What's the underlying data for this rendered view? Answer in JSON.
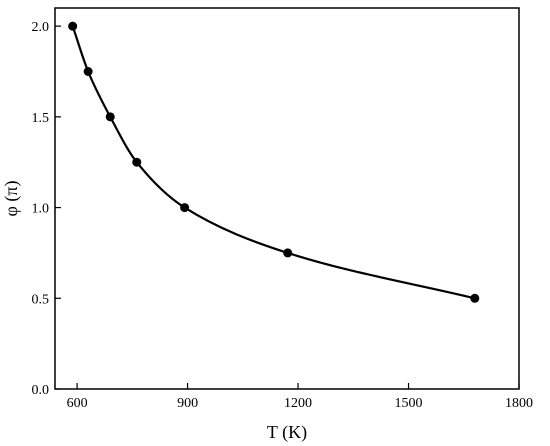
{
  "chart_data": {
    "type": "line",
    "xlabel": "T (K)",
    "ylabel": "φ (π)",
    "xlim": [
      540,
      1800
    ],
    "ylim": [
      0.0,
      2.1
    ],
    "xticks": [
      600,
      900,
      1200,
      1500,
      1800
    ],
    "yticks": [
      0.0,
      0.5,
      1.0,
      1.5,
      2.0
    ],
    "xtick_labels": [
      "600",
      "900",
      "1200",
      "1500",
      "1800"
    ],
    "ytick_labels": [
      "0.0",
      "0.5",
      "1.0",
      "1.5",
      "2.0"
    ],
    "grid": false,
    "series": [
      {
        "x": [
          588,
          630,
          690,
          762,
          892,
          1172,
          1680
        ],
        "y": [
          2.0,
          1.75,
          1.5,
          1.25,
          1.0,
          0.75,
          0.5
        ]
      }
    ],
    "colors": {
      "line": "#000000",
      "marker": "#000000",
      "axes": "#000000"
    }
  }
}
